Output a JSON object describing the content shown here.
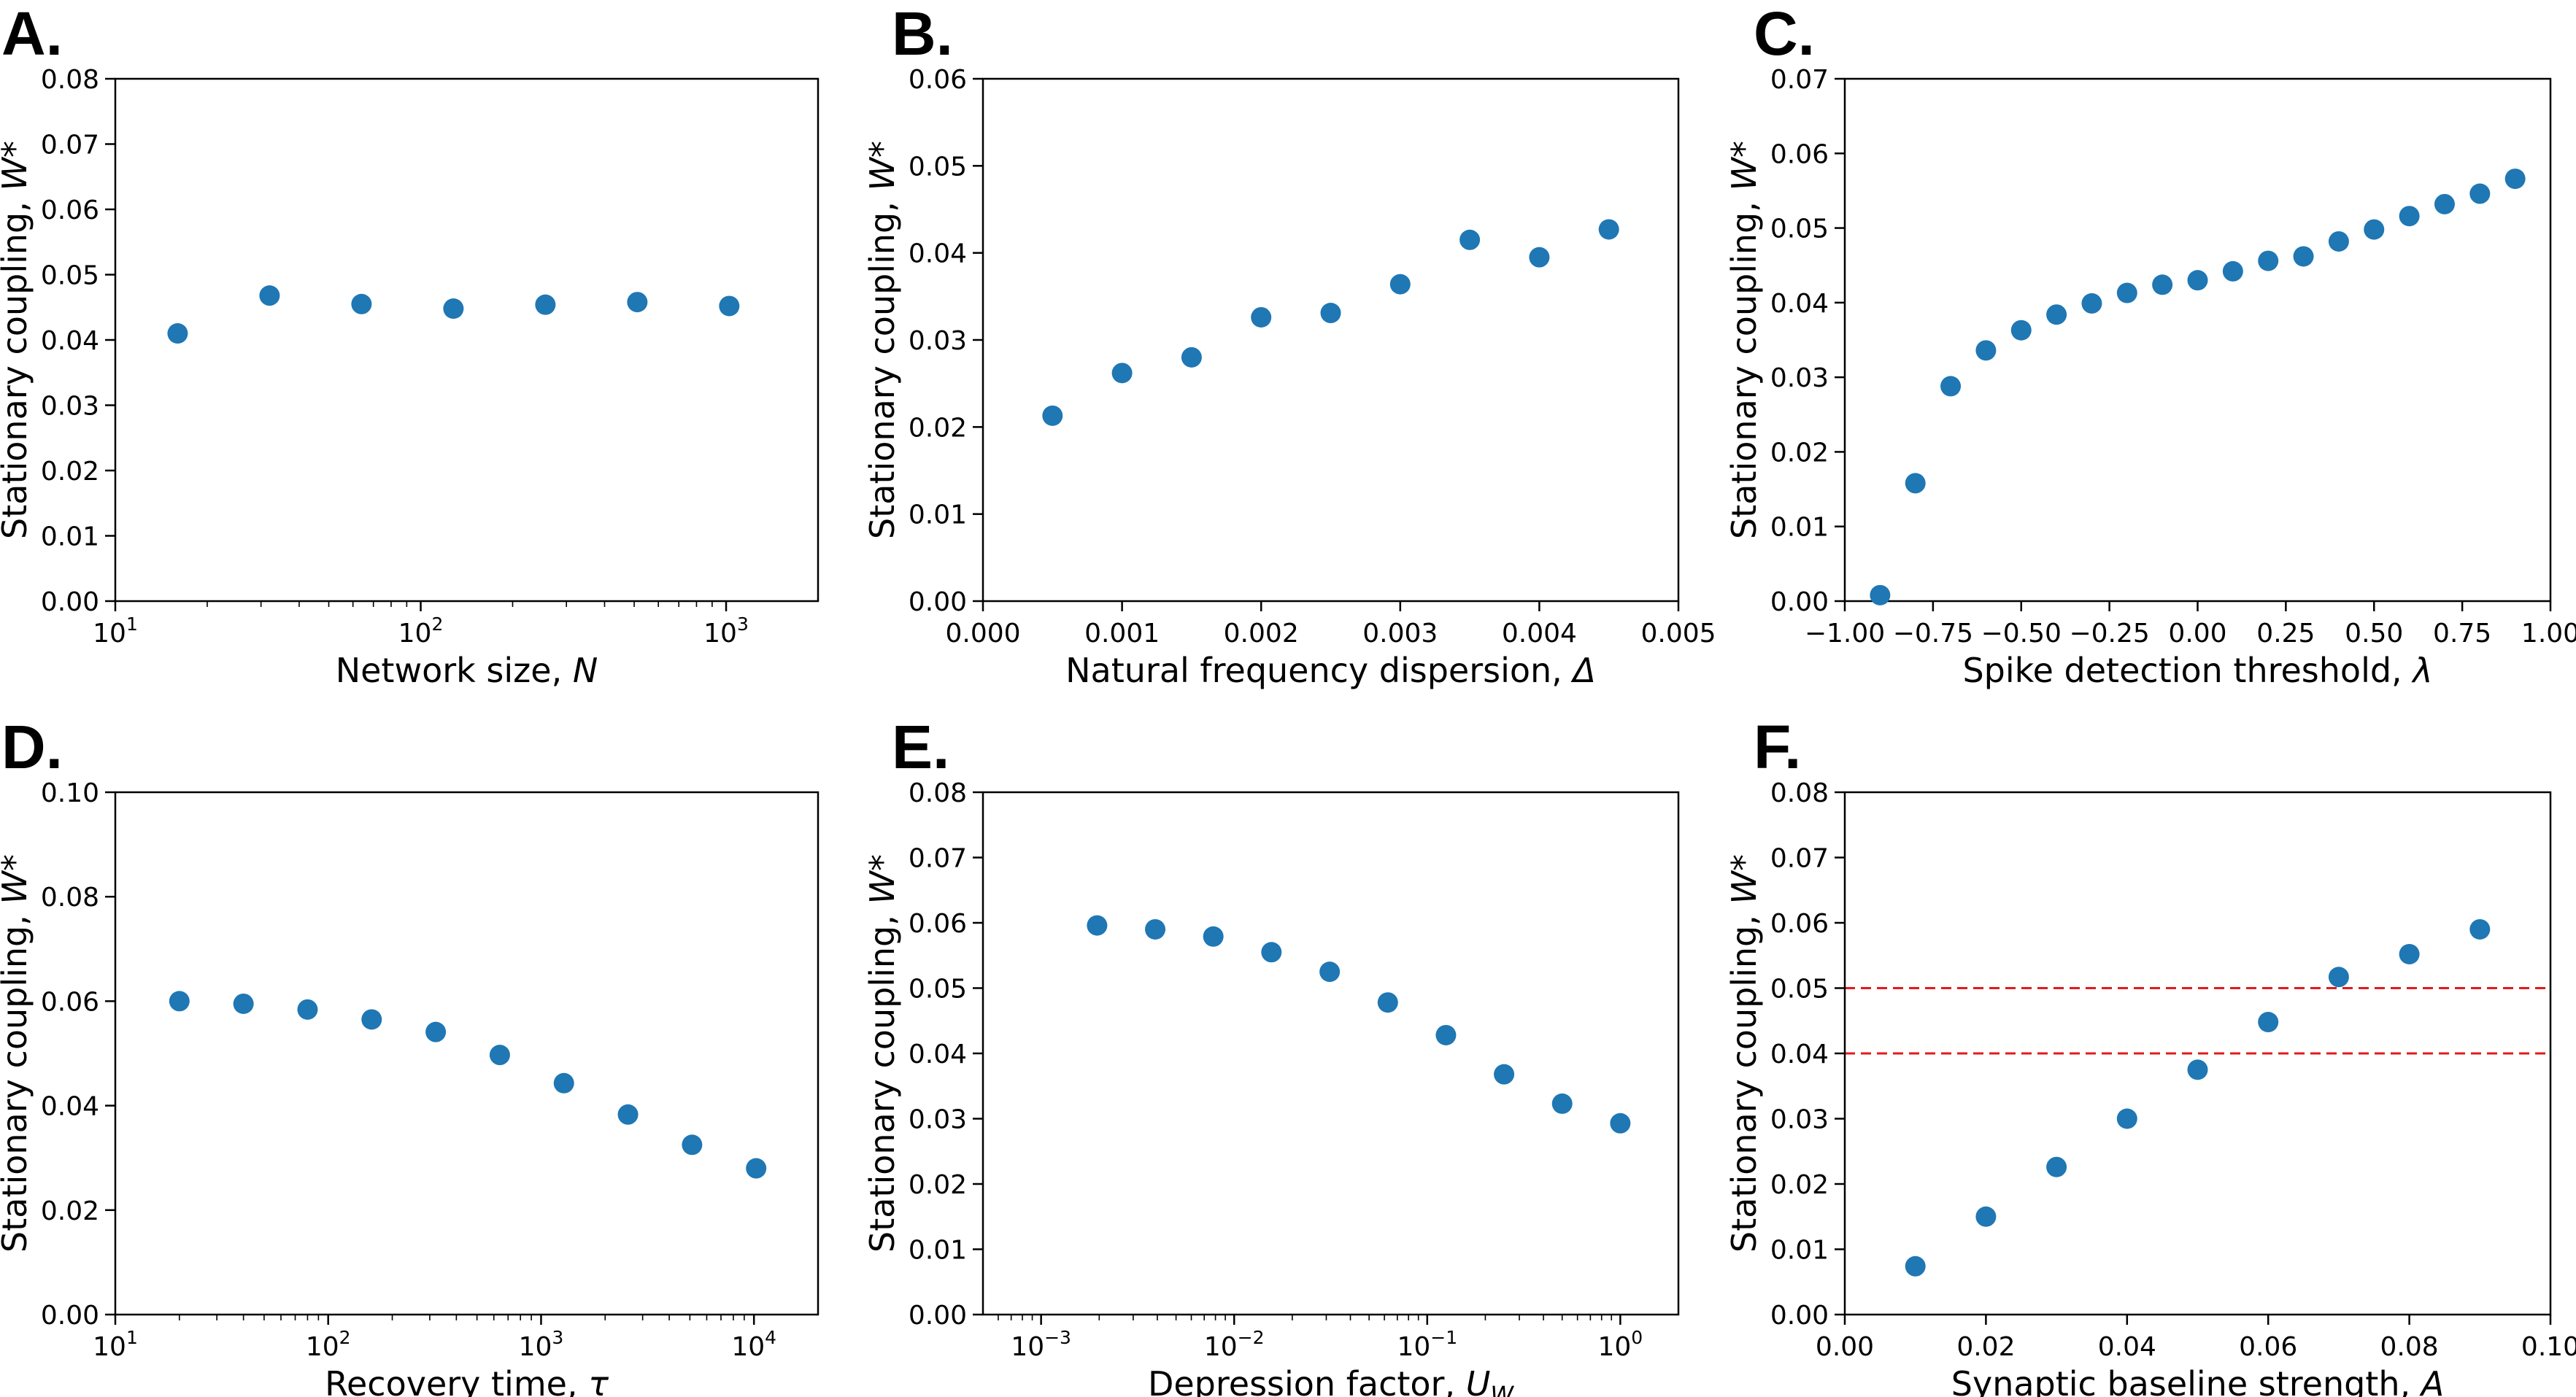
{
  "colors": {
    "marker": "#1f77b4",
    "reference_line": "#e31a1c",
    "axes": "#000000"
  },
  "chart_data": [
    {
      "panel": "A.",
      "type": "scatter",
      "xscale": "log",
      "xlim": [
        10,
        2000
      ],
      "ylim": [
        0,
        0.08
      ],
      "xlabel": "Network size, ",
      "xlabel_var": "N",
      "xlabel_sub": "",
      "ylabel": "Stationary coupling, ",
      "ylabel_var": "W*",
      "x_ticks": [
        {
          "value": 10,
          "base": "10",
          "exp": "1"
        },
        {
          "value": 100,
          "base": "10",
          "exp": "2"
        },
        {
          "value": 1000,
          "base": "10",
          "exp": "3"
        }
      ],
      "y_ticks": [
        {
          "value": 0.0,
          "label": "0.00"
        },
        {
          "value": 0.01,
          "label": "0.01"
        },
        {
          "value": 0.02,
          "label": "0.02"
        },
        {
          "value": 0.03,
          "label": "0.03"
        },
        {
          "value": 0.04,
          "label": "0.04"
        },
        {
          "value": 0.05,
          "label": "0.05"
        },
        {
          "value": 0.06,
          "label": "0.06"
        },
        {
          "value": 0.07,
          "label": "0.07"
        },
        {
          "value": 0.08,
          "label": "0.08"
        }
      ],
      "x": [
        16,
        32,
        64,
        128,
        256,
        512,
        1024
      ],
      "y": [
        0.041,
        0.0468,
        0.0455,
        0.0448,
        0.0454,
        0.0458,
        0.0452
      ]
    },
    {
      "panel": "B.",
      "type": "scatter",
      "xscale": "linear",
      "xlim": [
        0.0,
        0.005
      ],
      "ylim": [
        0,
        0.06
      ],
      "xlabel": "Natural frequency dispersion, ",
      "xlabel_var": "Δ",
      "xlabel_sub": "",
      "ylabel": "Stationary coupling, ",
      "ylabel_var": "W*",
      "x_ticks": [
        {
          "value": 0.0,
          "label": "0.000"
        },
        {
          "value": 0.001,
          "label": "0.001"
        },
        {
          "value": 0.002,
          "label": "0.002"
        },
        {
          "value": 0.003,
          "label": "0.003"
        },
        {
          "value": 0.004,
          "label": "0.004"
        },
        {
          "value": 0.005,
          "label": "0.005"
        }
      ],
      "y_ticks": [
        {
          "value": 0.0,
          "label": "0.00"
        },
        {
          "value": 0.01,
          "label": "0.01"
        },
        {
          "value": 0.02,
          "label": "0.02"
        },
        {
          "value": 0.03,
          "label": "0.03"
        },
        {
          "value": 0.04,
          "label": "0.04"
        },
        {
          "value": 0.05,
          "label": "0.05"
        },
        {
          "value": 0.06,
          "label": "0.06"
        }
      ],
      "x": [
        0.0005,
        0.001,
        0.0015,
        0.002,
        0.0025,
        0.003,
        0.0035,
        0.004,
        0.0045
      ],
      "y": [
        0.0213,
        0.0262,
        0.028,
        0.0326,
        0.0331,
        0.0364,
        0.0415,
        0.0395,
        0.0427
      ]
    },
    {
      "panel": "C.",
      "type": "scatter",
      "xscale": "linear",
      "xlim": [
        -1.0,
        1.0
      ],
      "ylim": [
        0,
        0.07
      ],
      "xlabel": "Spike detection threshold, ",
      "xlabel_var": "λ",
      "xlabel_sub": "",
      "ylabel": "Stationary coupling, ",
      "ylabel_var": "W*",
      "x_ticks": [
        {
          "value": -1.0,
          "label": "−1.00"
        },
        {
          "value": -0.75,
          "label": "−0.75"
        },
        {
          "value": -0.5,
          "label": "−0.50"
        },
        {
          "value": -0.25,
          "label": "−0.25"
        },
        {
          "value": 0.0,
          "label": "0.00"
        },
        {
          "value": 0.25,
          "label": "0.25"
        },
        {
          "value": 0.5,
          "label": "0.50"
        },
        {
          "value": 0.75,
          "label": "0.75"
        },
        {
          "value": 1.0,
          "label": "1.00"
        }
      ],
      "y_ticks": [
        {
          "value": 0.0,
          "label": "0.00"
        },
        {
          "value": 0.01,
          "label": "0.01"
        },
        {
          "value": 0.02,
          "label": "0.02"
        },
        {
          "value": 0.03,
          "label": "0.03"
        },
        {
          "value": 0.04,
          "label": "0.04"
        },
        {
          "value": 0.05,
          "label": "0.05"
        },
        {
          "value": 0.06,
          "label": "0.06"
        },
        {
          "value": 0.07,
          "label": "0.07"
        }
      ],
      "x": [
        -0.9,
        -0.8,
        -0.7,
        -0.6,
        -0.5,
        -0.4,
        -0.3,
        -0.2,
        -0.1,
        0.0,
        0.1,
        0.2,
        0.3,
        0.4,
        0.5,
        0.6,
        0.7,
        0.8,
        0.9
      ],
      "y": [
        0.0008,
        0.0158,
        0.0288,
        0.0336,
        0.0363,
        0.0384,
        0.0399,
        0.0413,
        0.0424,
        0.043,
        0.0442,
        0.0456,
        0.0462,
        0.0482,
        0.0498,
        0.0516,
        0.0532,
        0.0546,
        0.0566
      ]
    },
    {
      "panel": "D.",
      "type": "scatter",
      "xscale": "log",
      "xlim": [
        10,
        20000
      ],
      "ylim": [
        0,
        0.1
      ],
      "xlabel": "Recovery time, ",
      "xlabel_var": "τ",
      "xlabel_sub": "",
      "ylabel": "Stationary coupling, ",
      "ylabel_var": "W*",
      "x_ticks": [
        {
          "value": 10,
          "base": "10",
          "exp": "1"
        },
        {
          "value": 100,
          "base": "10",
          "exp": "2"
        },
        {
          "value": 1000,
          "base": "10",
          "exp": "3"
        },
        {
          "value": 10000,
          "base": "10",
          "exp": "4"
        }
      ],
      "y_ticks": [
        {
          "value": 0.0,
          "label": "0.00"
        },
        {
          "value": 0.02,
          "label": "0.02"
        },
        {
          "value": 0.04,
          "label": "0.04"
        },
        {
          "value": 0.06,
          "label": "0.06"
        },
        {
          "value": 0.08,
          "label": "0.08"
        },
        {
          "value": 0.1,
          "label": "0.10"
        }
      ],
      "x": [
        20,
        40,
        80,
        160,
        320,
        640,
        1280,
        2560,
        5120,
        10240
      ],
      "y": [
        0.06,
        0.0595,
        0.0584,
        0.0565,
        0.0541,
        0.0497,
        0.0443,
        0.0383,
        0.0325,
        0.028
      ]
    },
    {
      "panel": "E.",
      "type": "scatter",
      "xscale": "log",
      "xlim": [
        0.0005,
        2
      ],
      "ylim": [
        0,
        0.08
      ],
      "xlabel": "Depression factor, ",
      "xlabel_var": "U",
      "xlabel_sub": "W",
      "ylabel": "Stationary coupling, ",
      "ylabel_var": "W*",
      "x_ticks": [
        {
          "value": 0.001,
          "base": "10",
          "exp": "−3"
        },
        {
          "value": 0.01,
          "base": "10",
          "exp": "−2"
        },
        {
          "value": 0.1,
          "base": "10",
          "exp": "−1"
        },
        {
          "value": 1,
          "base": "10",
          "exp": "0"
        }
      ],
      "y_ticks": [
        {
          "value": 0.0,
          "label": "0.00"
        },
        {
          "value": 0.01,
          "label": "0.01"
        },
        {
          "value": 0.02,
          "label": "0.02"
        },
        {
          "value": 0.03,
          "label": "0.03"
        },
        {
          "value": 0.04,
          "label": "0.04"
        },
        {
          "value": 0.05,
          "label": "0.05"
        },
        {
          "value": 0.06,
          "label": "0.06"
        },
        {
          "value": 0.07,
          "label": "0.07"
        },
        {
          "value": 0.08,
          "label": "0.08"
        }
      ],
      "x": [
        0.00195,
        0.0039,
        0.0078,
        0.0156,
        0.03125,
        0.0625,
        0.125,
        0.25,
        0.5,
        1.0
      ],
      "y": [
        0.0596,
        0.059,
        0.0579,
        0.0555,
        0.0525,
        0.0478,
        0.0428,
        0.0368,
        0.0323,
        0.0293
      ]
    },
    {
      "panel": "F.",
      "type": "scatter",
      "xscale": "linear",
      "xlim": [
        0.0,
        0.1
      ],
      "ylim": [
        0,
        0.08
      ],
      "xlabel": "Synaptic baseline strength, ",
      "xlabel_var": "A",
      "xlabel_sub": "",
      "ylabel": "Stationary coupling, ",
      "ylabel_var": "W*",
      "hlines": [
        0.05,
        0.04
      ],
      "x_ticks": [
        {
          "value": 0.0,
          "label": "0.00"
        },
        {
          "value": 0.02,
          "label": "0.02"
        },
        {
          "value": 0.04,
          "label": "0.04"
        },
        {
          "value": 0.06,
          "label": "0.06"
        },
        {
          "value": 0.08,
          "label": "0.08"
        },
        {
          "value": 0.1,
          "label": "0.10"
        }
      ],
      "y_ticks": [
        {
          "value": 0.0,
          "label": "0.00"
        },
        {
          "value": 0.01,
          "label": "0.01"
        },
        {
          "value": 0.02,
          "label": "0.02"
        },
        {
          "value": 0.03,
          "label": "0.03"
        },
        {
          "value": 0.04,
          "label": "0.04"
        },
        {
          "value": 0.05,
          "label": "0.05"
        },
        {
          "value": 0.06,
          "label": "0.06"
        },
        {
          "value": 0.07,
          "label": "0.07"
        },
        {
          "value": 0.08,
          "label": "0.08"
        }
      ],
      "x": [
        0.01,
        0.02,
        0.03,
        0.04,
        0.05,
        0.06,
        0.07,
        0.08,
        0.09
      ],
      "y": [
        0.0074,
        0.015,
        0.0226,
        0.03,
        0.0375,
        0.0448,
        0.0517,
        0.0552,
        0.059
      ]
    }
  ]
}
